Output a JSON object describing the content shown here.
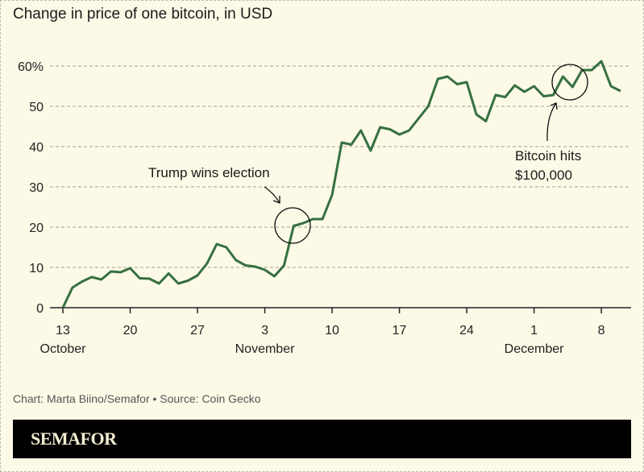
{
  "title": "Change in price of one bitcoin, in USD",
  "credit": "Chart: Marta Biino/Semafor • Source: Coin Gecko",
  "logo": "SEMAFOR",
  "chart_data": {
    "type": "line",
    "title": "Change in price of one bitcoin, in USD",
    "ylim": [
      0,
      60
    ],
    "yticks": [
      "0",
      "10",
      "20",
      "30",
      "40",
      "50",
      "60%"
    ],
    "ytick_values": [
      0,
      10,
      20,
      30,
      40,
      50,
      60
    ],
    "xticks": [
      {
        "day": 0,
        "label": "13",
        "month": "October"
      },
      {
        "day": 7,
        "label": "20",
        "month": ""
      },
      {
        "day": 14,
        "label": "27",
        "month": ""
      },
      {
        "day": 21,
        "label": "3",
        "month": "November"
      },
      {
        "day": 28,
        "label": "10",
        "month": ""
      },
      {
        "day": 35,
        "label": "17",
        "month": ""
      },
      {
        "day": 42,
        "label": "24",
        "month": ""
      },
      {
        "day": 49,
        "label": "1",
        "month": "December"
      },
      {
        "day": 56,
        "label": "8",
        "month": ""
      }
    ],
    "grid": true,
    "line_color": "#36703f",
    "x_start": "2024-10-13",
    "values": [
      0,
      5,
      6.5,
      7.6,
      7,
      9,
      8.8,
      9.8,
      7.3,
      7.2,
      6,
      8.5,
      6,
      6.7,
      8,
      11,
      15.8,
      15,
      11.8,
      10.5,
      10.2,
      9.4,
      7.8,
      10.5,
      20.3,
      21,
      22,
      22,
      28,
      41,
      40.5,
      44,
      39,
      44.8,
      44.3,
      43,
      44,
      47,
      50,
      56.8,
      57.4,
      55.5,
      56,
      48,
      46.3,
      52.8,
      52.3,
      55.2,
      53.6,
      55,
      52.5,
      52.8,
      57.4,
      54.8,
      59,
      59,
      61.2,
      55,
      53.8
    ],
    "annotations": [
      {
        "text": "Trump wins election",
        "day": 24
      },
      {
        "text_line1": "Bitcoin hits",
        "text_line2": "$100,000",
        "day": 53
      }
    ]
  }
}
